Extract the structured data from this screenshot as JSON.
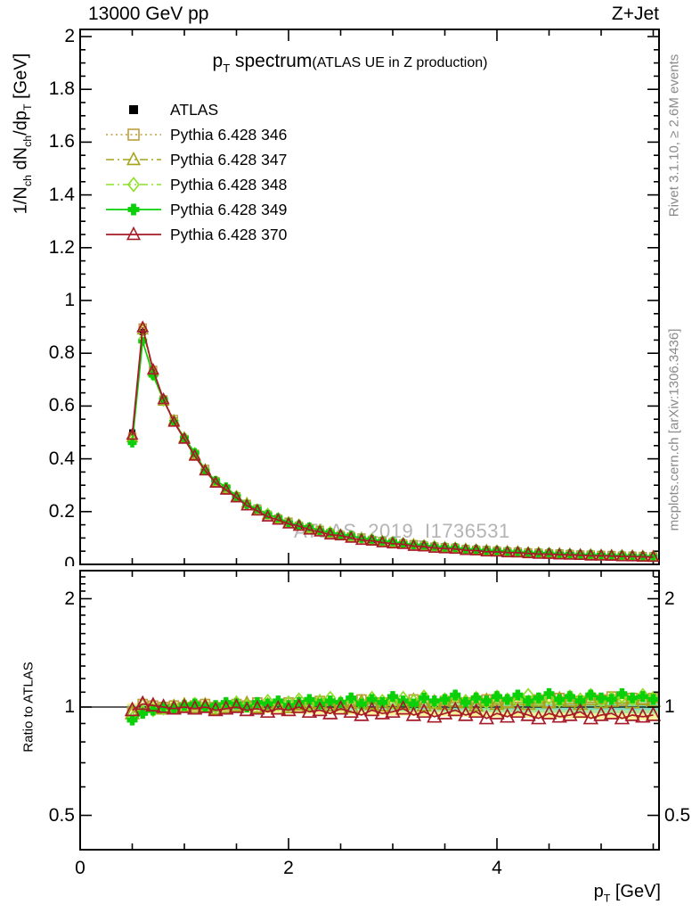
{
  "header": {
    "left": "13000 GeV pp",
    "right": "Z+Jet"
  },
  "title": {
    "p": "p",
    "sub": "T",
    "rest": " spectrum",
    "paren": "(ATLAS UE in Z production)"
  },
  "ylabel": {
    "p1": "1/N",
    "s1": "ch",
    "p2": " dN",
    "s2": "ch",
    "p3": "/dp",
    "s3": "T",
    "p4": " [GeV]"
  },
  "ratio_label": "Ratio to ATLAS",
  "xlabel": {
    "p1": "p",
    "s1": "T",
    "p2": " [GeV]"
  },
  "right_margin": {
    "top": "Rivet 3.1.10, ≥ 2.6M events",
    "bottom": "mcplots.cern.ch [arXiv:1306.3436]"
  },
  "watermark": "ATLAS_2019_I1736531",
  "legend": [
    {
      "label": "ATLAS",
      "marker": "sq-f",
      "line": "none",
      "color": "#000000"
    },
    {
      "label": "Pythia 6.428 346",
      "marker": "sq-o",
      "line": "dotted",
      "color": "#bd9e3e"
    },
    {
      "label": "Pythia 6.428 347",
      "marker": "tri-o",
      "line": "dashdot",
      "color": "#a4a418"
    },
    {
      "label": "Pythia 6.428 348",
      "marker": "di-o",
      "line": "dashdot",
      "color": "#8ce026"
    },
    {
      "label": "Pythia 6.428 349",
      "marker": "plus-f",
      "line": "solid",
      "color": "#0ad00a"
    },
    {
      "label": "Pythia 6.428 370",
      "marker": "tri-o",
      "line": "solid",
      "color": "#a61c28"
    }
  ],
  "axes": {
    "main_y": [
      {
        "v": 2.0,
        "t": "2"
      },
      {
        "v": 1.8,
        "t": "1.8"
      },
      {
        "v": 1.6,
        "t": "1.6"
      },
      {
        "v": 1.4,
        "t": "1.4"
      },
      {
        "v": 1.2,
        "t": "1.2"
      },
      {
        "v": 1.0,
        "t": "1"
      },
      {
        "v": 0.8,
        "t": "0.8"
      },
      {
        "v": 0.6,
        "t": "0.6"
      },
      {
        "v": 0.4,
        "t": "0.4"
      },
      {
        "v": 0.2,
        "t": "0.2"
      },
      {
        "v": 0.0,
        "t": "0"
      }
    ],
    "ratio_y": [
      {
        "v": 2,
        "t": "2"
      },
      {
        "v": 1,
        "t": "1"
      },
      {
        "v": 0.5,
        "t": "0.5"
      }
    ],
    "x": [
      {
        "v": 0,
        "t": "0"
      },
      {
        "v": 2,
        "t": "2"
      },
      {
        "v": 4,
        "t": "4"
      }
    ]
  },
  "chart_data": {
    "type": "line",
    "title": "p_T spectrum (ATLAS UE in Z production)",
    "xlabel": "p_T [GeV]",
    "ylabel": "1/N_ch dN_ch/dp_T [GeV]",
    "ratio_ylabel": "Ratio to ATLAS",
    "xlim": [
      0,
      5.56
    ],
    "ylim": [
      0,
      2.03
    ],
    "ratio_ylim_log": [
      0.4,
      2.39
    ],
    "x_tick_major": [
      0,
      2,
      4
    ],
    "x_tick_minor_step": 0.5,
    "y_tick_major_step": 0.2,
    "y_tick_minor_step": 0.05,
    "ratio_tick_major": [
      0.5,
      1,
      2
    ],
    "ratio_tick_minor": [
      0.4,
      0.6,
      0.7,
      0.8,
      0.9,
      1.1,
      1.2,
      1.3,
      1.4,
      1.5,
      1.6,
      1.7,
      1.8,
      1.9,
      2.1,
      2.2,
      2.3
    ],
    "legend_position": "top-left",
    "grid": false,
    "x": [
      0.5,
      0.6,
      0.7,
      0.8,
      0.9,
      1.0,
      1.1,
      1.2,
      1.3,
      1.4,
      1.5,
      1.6,
      1.7,
      1.8,
      1.9,
      2.0,
      2.1,
      2.2,
      2.3,
      2.4,
      2.5,
      2.6,
      2.7,
      2.8,
      2.9,
      3.0,
      3.1,
      3.2,
      3.3,
      3.4,
      3.5,
      3.6,
      3.7,
      3.8,
      3.9,
      4.0,
      4.1,
      4.2,
      4.3,
      4.4,
      4.5,
      4.6,
      4.7,
      4.8,
      4.9,
      5.0,
      5.1,
      5.2,
      5.3,
      5.4,
      5.5
    ],
    "atlas": {
      "name": "ATLAS",
      "color": "#000000",
      "values": [
        0.5,
        0.88,
        0.73,
        0.625,
        0.545,
        0.475,
        0.415,
        0.355,
        0.315,
        0.285,
        0.253,
        0.227,
        0.205,
        0.186,
        0.17,
        0.157,
        0.145,
        0.135,
        0.126,
        0.117,
        0.11,
        0.103,
        0.097,
        0.091,
        0.086,
        0.081,
        0.077,
        0.073,
        0.069,
        0.066,
        0.0625,
        0.0595,
        0.0565,
        0.054,
        0.0515,
        0.0495,
        0.0475,
        0.0455,
        0.0435,
        0.042,
        0.0405,
        0.039,
        0.0375,
        0.036,
        0.035,
        0.034,
        0.033,
        0.032,
        0.031,
        0.03,
        0.029
      ]
    },
    "series": [
      {
        "name": "Pythia 6.428 346",
        "color": "#bd9e3e",
        "line": "dotted",
        "marker": "sq-o",
        "ratio": [
          0.97,
          1.02,
          1.01,
          1.0,
          1.01,
          1.0,
          1.01,
          1.02,
          1.0,
          1.01,
          1.02,
          1.01,
          1.03,
          1.01,
          1.02,
          1.03,
          1.01,
          1.02,
          1.04,
          1.02,
          1.01,
          1.03,
          1.05,
          1.02,
          1.03,
          1.04,
          1.02,
          1.05,
          1.03,
          1.02,
          1.04,
          1.06,
          1.03,
          1.02,
          1.05,
          1.04,
          1.03,
          1.06,
          1.04,
          1.05,
          1.03,
          1.06,
          1.05,
          1.04,
          1.06,
          1.05,
          1.07,
          1.04,
          1.06,
          1.05,
          1.06
        ]
      },
      {
        "name": "Pythia 6.428 347",
        "color": "#a4a418",
        "line": "dashdot",
        "marker": "tri-o",
        "ratio": [
          0.96,
          1.01,
          1.0,
          0.99,
          1.0,
          1.01,
          1.0,
          1.01,
          0.99,
          1.0,
          1.01,
          1.02,
          1.0,
          1.01,
          1.02,
          1.0,
          1.02,
          1.01,
          1.03,
          1.01,
          1.02,
          1.0,
          1.03,
          1.02,
          1.01,
          1.03,
          1.02,
          1.04,
          1.01,
          1.03,
          1.02,
          1.04,
          1.03,
          1.01,
          1.04,
          1.02,
          1.03,
          1.05,
          1.02,
          1.04,
          1.03,
          1.05,
          1.04,
          1.02,
          1.05,
          1.03,
          1.04,
          1.06,
          1.03,
          1.05,
          1.04
        ]
      },
      {
        "name": "Pythia 6.428 348",
        "color": "#8ce026",
        "line": "dashdot",
        "marker": "di-o",
        "ratio": [
          0.93,
          0.97,
          0.98,
          0.99,
          1.0,
          1.01,
          1.02,
          1.01,
          1.0,
          1.02,
          1.03,
          1.01,
          1.02,
          1.04,
          1.02,
          1.03,
          1.05,
          1.02,
          1.04,
          1.06,
          1.03,
          1.05,
          1.02,
          1.06,
          1.04,
          1.03,
          1.06,
          1.04,
          1.07,
          1.03,
          1.05,
          1.07,
          1.04,
          1.06,
          1.03,
          1.07,
          1.05,
          1.04,
          1.08,
          1.05,
          1.06,
          1.04,
          1.07,
          1.05,
          1.08,
          1.04,
          1.06,
          1.07,
          1.05,
          1.08,
          1.06
        ]
      },
      {
        "name": "Pythia 6.428 349",
        "color": "#0ad00a",
        "line": "solid",
        "marker": "plus-f",
        "ratio": [
          0.92,
          0.96,
          0.98,
          1.0,
          0.99,
          1.01,
          1.02,
          1.0,
          1.01,
          1.03,
          1.02,
          1.0,
          1.03,
          1.02,
          1.04,
          1.01,
          1.03,
          1.05,
          1.02,
          1.04,
          1.03,
          1.06,
          1.02,
          1.05,
          1.03,
          1.07,
          1.04,
          1.02,
          1.06,
          1.04,
          1.05,
          1.08,
          1.03,
          1.06,
          1.04,
          1.07,
          1.05,
          1.08,
          1.04,
          1.06,
          1.09,
          1.05,
          1.07,
          1.04,
          1.08,
          1.06,
          1.05,
          1.09,
          1.06,
          1.07,
          1.05
        ]
      },
      {
        "name": "Pythia 6.428 370",
        "color": "#a61c28",
        "line": "solid",
        "marker": "tri-o",
        "ratio": [
          0.98,
          1.02,
          1.01,
          1.0,
          0.99,
          1.0,
          0.99,
          1.0,
          0.98,
          0.99,
          1.0,
          0.98,
          0.99,
          0.97,
          0.99,
          0.98,
          1.0,
          0.97,
          0.98,
          0.96,
          0.99,
          0.97,
          0.95,
          0.98,
          0.96,
          0.97,
          0.99,
          0.95,
          0.97,
          0.94,
          0.96,
          0.98,
          0.95,
          0.97,
          0.93,
          0.96,
          0.94,
          0.97,
          0.95,
          0.93,
          0.96,
          0.94,
          0.95,
          0.97,
          0.93,
          0.95,
          0.96,
          0.93,
          0.95,
          0.94,
          0.95
        ]
      }
    ],
    "ratio_bands": {
      "yellow": {
        "color": "#fbf29a",
        "halfwidth_start": 0.025,
        "halfwidth_slope": 0.011
      },
      "green": {
        "color": "#a9e69e",
        "halfwidth_start": 0.013,
        "halfwidth_slope": 0.0056
      },
      "teal": {
        "color": "#7fd8c0",
        "halfwidth_start": 0.006,
        "halfwidth_slope": 0.0025
      }
    }
  }
}
